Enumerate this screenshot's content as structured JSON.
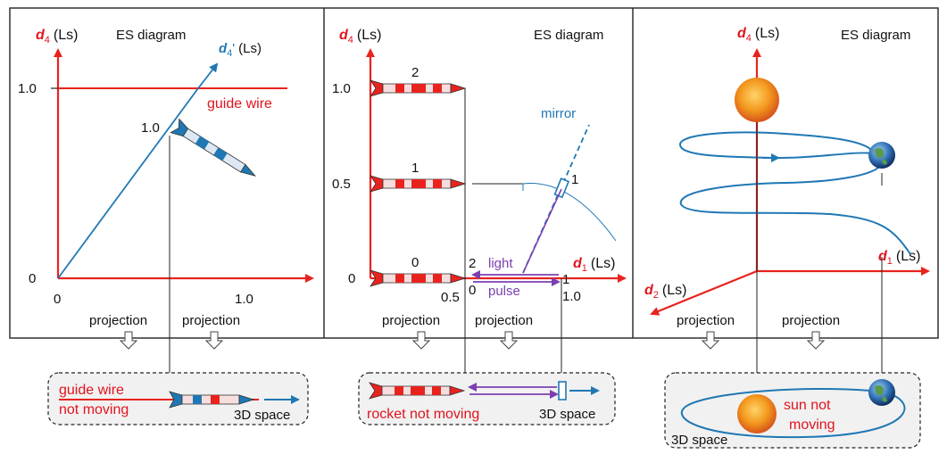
{
  "common": {
    "es_diagram": "ES diagram",
    "d4_axis": "d",
    "d4_sub": "4",
    "d1_sub": "1",
    "d2_sub": "2",
    "unit": "(Ls)",
    "projection": "projection",
    "space_3d": "3D space"
  },
  "panel1": {
    "d4_prime_sub": "4",
    "d4_prime_mark": "'",
    "y_tick_1": "1.0",
    "y_tick_0": "0",
    "x_tick_0": "0",
    "x_tick_1": "1.0",
    "guide_wire": "guide wire",
    "rocket_time": "1.0",
    "bottom_label_1": "guide wire",
    "bottom_label_2": "not moving"
  },
  "panel2": {
    "y_tick_1": "1.0",
    "y_tick_05": "0.5",
    "y_tick_0": "0",
    "rocket_2": "2",
    "rocket_1": "1",
    "rocket_0": "0",
    "mirror": "mirror",
    "mirror_time": "1",
    "light": "light",
    "pulse": "pulse",
    "pulse_time_2": "2",
    "pulse_time_0": "0",
    "pulse_time_1": "1",
    "x_tick_05": "0.5",
    "x_tick_1": "1.0",
    "bottom_label": "rocket not moving"
  },
  "panel3": {
    "bottom_label_1": "sun not",
    "bottom_label_2": "moving"
  },
  "colors": {
    "axis_red": "#e8231e",
    "world_blue": "#1f78b4",
    "light_purple": "#7b3fb0"
  }
}
